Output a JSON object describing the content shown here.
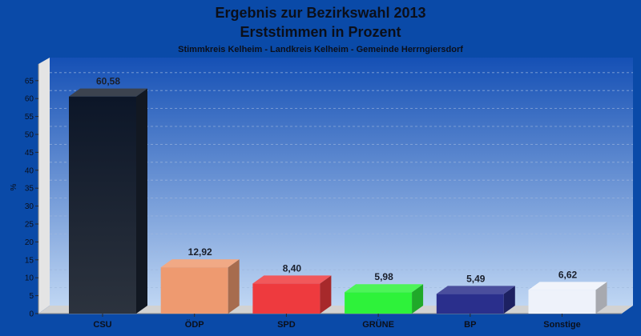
{
  "chart_data": {
    "type": "bar",
    "title": "Ergebnis zur Bezirkswahl 2013",
    "subtitle": "Erststimmen in Prozent",
    "caption": "Stimmkreis Kelheim - Landkreis Kelheim - Gemeinde Herrngiersdorf",
    "ylabel": "%",
    "xlabel": "",
    "ylim": [
      0,
      65
    ],
    "yticks": [
      0,
      5,
      10,
      15,
      20,
      25,
      30,
      35,
      40,
      45,
      50,
      55,
      60,
      65
    ],
    "grid": true,
    "categories": [
      "CSU",
      "ÖDP",
      "SPD",
      "GRÜNE",
      "BP",
      "Sonstige"
    ],
    "values": [
      60.58,
      12.92,
      8.4,
      5.98,
      5.49,
      6.62
    ],
    "value_labels": [
      "60,58",
      "12,92",
      "8,40",
      "5,98",
      "5,49",
      "6,62"
    ],
    "colors": [
      "#1a2230",
      "#ee9a70",
      "#ee3a3e",
      "#2ef23a",
      "#2a2f8c",
      "#eef2fa"
    ]
  }
}
